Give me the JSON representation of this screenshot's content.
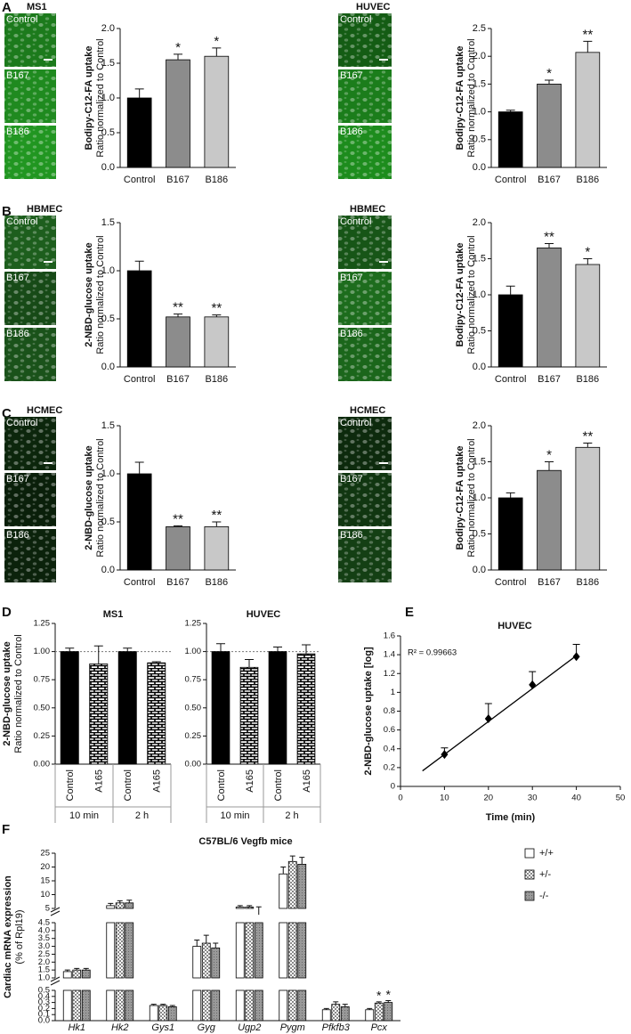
{
  "panel_letters": [
    "A",
    "B",
    "C",
    "D",
    "E",
    "F"
  ],
  "micrographs": [
    {
      "title": "MS1",
      "rows": [
        "Control",
        "B167",
        "B186"
      ],
      "colors": [
        "#1c7a1c",
        "#1f8a1f",
        "#219621"
      ]
    },
    {
      "title": "HUVEC",
      "rows": [
        "Control",
        "B167",
        "B186"
      ],
      "colors": [
        "#145c14",
        "#1b7d1b",
        "#1d8c1d"
      ]
    },
    {
      "title": "HBMEC",
      "rows": [
        "Control",
        "B167",
        "B186"
      ],
      "colors": [
        "#1d5e1d",
        "#174a17",
        "#1a521a"
      ]
    },
    {
      "title": "HBMEC",
      "rows": [
        "Control",
        "B167",
        "B186"
      ],
      "colors": [
        "#175517",
        "#1d6c1d",
        "#1b661b"
      ]
    },
    {
      "title": "HCMEC",
      "rows": [
        "Control",
        "B167",
        "B186"
      ],
      "colors": [
        "#0c260c",
        "#0a1f0a",
        "#0b220b"
      ]
    },
    {
      "title": "HCMEC",
      "rows": [
        "Control",
        "B167",
        "B186"
      ],
      "colors": [
        "#0d2a0d",
        "#113611",
        "#143f14"
      ]
    }
  ],
  "chart_data": [
    {
      "type": "bar",
      "ylabel": [
        "Bodipy-C12-FA  uptake",
        "Ratio normalized to Control"
      ],
      "categories": [
        "Control",
        "B167",
        "B186"
      ],
      "values": [
        1.0,
        1.55,
        1.6
      ],
      "errors": [
        0.13,
        0.08,
        0.12
      ],
      "significance": [
        null,
        "*",
        "*"
      ],
      "colors": [
        "#000000",
        "#8c8c8c",
        "#c8c8c8"
      ],
      "ylim": [
        0,
        2
      ],
      "yticks": [
        {
          "value": 0,
          "label": "0.0"
        },
        0.5,
        {
          "value": 1,
          "label": "1.0"
        },
        1.5,
        {
          "value": 2,
          "label": "2.0"
        }
      ]
    },
    {
      "type": "bar",
      "ylabel": [
        "Bodipy-C12-FA  uptake",
        "Ratio normalized to Control"
      ],
      "categories": [
        "Control",
        "B167",
        "B186"
      ],
      "values": [
        1.0,
        1.5,
        2.07
      ],
      "errors": [
        0.03,
        0.07,
        0.2
      ],
      "significance": [
        null,
        "*",
        "**"
      ],
      "colors": [
        "#000000",
        "#8c8c8c",
        "#c8c8c8"
      ],
      "ylim": [
        0,
        2.5
      ],
      "yticks": [
        {
          "value": 0,
          "label": "0.0"
        },
        0.5,
        {
          "value": 1,
          "label": "1.0"
        },
        1.5,
        {
          "value": 2,
          "label": "2.0"
        },
        2.5
      ]
    },
    {
      "type": "bar",
      "ylabel": [
        "2-NBD-glucose uptake",
        "Ratio normalized to Control"
      ],
      "categories": [
        "Control",
        "B167",
        "B186"
      ],
      "values": [
        1.0,
        0.52,
        0.52
      ],
      "errors": [
        0.1,
        0.03,
        0.02
      ],
      "significance": [
        null,
        "**",
        "**"
      ],
      "colors": [
        "#000000",
        "#8c8c8c",
        "#c8c8c8"
      ],
      "ylim": [
        0,
        1.5
      ],
      "yticks": [
        {
          "value": 0,
          "label": "0.0"
        },
        0.5,
        {
          "value": 1,
          "label": "1.0"
        },
        1.5
      ]
    },
    {
      "type": "bar",
      "ylabel": [
        "Bodipy-C12-FA  uptake",
        "Ratio normalized to Control"
      ],
      "categories": [
        "Control",
        "B167",
        "B186"
      ],
      "values": [
        1.0,
        1.65,
        1.42
      ],
      "errors": [
        0.12,
        0.06,
        0.08
      ],
      "significance": [
        null,
        "**",
        "*"
      ],
      "colors": [
        "#000000",
        "#8c8c8c",
        "#c8c8c8"
      ],
      "ylim": [
        0,
        2
      ],
      "yticks": [
        {
          "value": 0,
          "label": "0.0"
        },
        0.5,
        {
          "value": 1,
          "label": "1.0"
        },
        1.5,
        {
          "value": 2,
          "label": "2.0"
        }
      ]
    },
    {
      "type": "bar",
      "ylabel": [
        "2-NBD-glucose uptake",
        "Ratio normalized to Control"
      ],
      "categories": [
        "Control",
        "B167",
        "B186"
      ],
      "values": [
        1.0,
        0.45,
        0.45
      ],
      "errors": [
        0.12,
        0.01,
        0.05
      ],
      "significance": [
        null,
        "**",
        "**"
      ],
      "colors": [
        "#000000",
        "#8c8c8c",
        "#c8c8c8"
      ],
      "ylim": [
        0,
        1.5
      ],
      "yticks": [
        {
          "value": 0,
          "label": "0.0"
        },
        0.5,
        {
          "value": 1,
          "label": "1.0"
        },
        1.5
      ]
    },
    {
      "type": "bar",
      "ylabel": [
        "Bodipy-C12-FA  uptake",
        "Ratio normalized to Control"
      ],
      "categories": [
        "Control",
        "B167",
        "B186"
      ],
      "values": [
        1.0,
        1.38,
        1.7
      ],
      "errors": [
        0.07,
        0.12,
        0.06
      ],
      "significance": [
        null,
        "*",
        "**"
      ],
      "colors": [
        "#000000",
        "#8c8c8c",
        "#c8c8c8"
      ],
      "ylim": [
        0,
        2
      ],
      "yticks": [
        {
          "value": 0,
          "label": "0.0"
        },
        0.5,
        {
          "value": 1,
          "label": "1.0"
        },
        1.5,
        {
          "value": 2,
          "label": "2.0"
        }
      ]
    },
    {
      "type": "bar",
      "title": "MS1",
      "ylabel": [
        "2-NBD-glucose uptake",
        "Ratio normalized to Control"
      ],
      "categories": [
        "Control",
        "A165",
        "Control",
        "A165"
      ],
      "groups": [
        "10 min",
        "2 h"
      ],
      "values": [
        1.0,
        0.89,
        1.0,
        0.9
      ],
      "errors": [
        0.03,
        0.16,
        0.03,
        0.01
      ],
      "colors": [
        "#000000",
        "#000000",
        "#000000",
        "#000000"
      ],
      "patterns": [
        null,
        "brick",
        null,
        "brick"
      ],
      "refline": 1.0,
      "ylim": [
        0,
        1.25
      ],
      "yticks": [
        {
          "value": 0,
          "label": "0.00"
        },
        0.25,
        {
          "value": 0.5,
          "label": "0.50"
        },
        0.75,
        {
          "value": 1,
          "label": "1.00"
        },
        1.25
      ]
    },
    {
      "type": "bar",
      "title": "HUVEC",
      "categories": [
        "Control",
        "A165",
        "Control",
        "A165"
      ],
      "groups": [
        "10 min",
        "2 h"
      ],
      "values": [
        1.0,
        0.86,
        1.0,
        0.98
      ],
      "errors": [
        0.07,
        0.07,
        0.04,
        0.08
      ],
      "colors": [
        "#000000",
        "#000000",
        "#000000",
        "#000000"
      ],
      "patterns": [
        null,
        "brick",
        null,
        "brick"
      ],
      "refline": 1.0,
      "ylim": [
        0,
        1.25
      ],
      "yticks": [
        {
          "value": 0,
          "label": "0.00"
        },
        0.25,
        {
          "value": 0.5,
          "label": "0.50"
        },
        0.75,
        {
          "value": 1,
          "label": "1.00"
        },
        1.25
      ]
    },
    {
      "type": "scatter",
      "title": "HUVEC",
      "xlabel": "Time (min)",
      "ylabel": "2-NBD-glucose uptake [log]",
      "annotation": "R² = 0.99663",
      "x": [
        10,
        20,
        30,
        40
      ],
      "y": [
        0.34,
        0.72,
        1.08,
        1.38
      ],
      "errors": [
        0.07,
        0.16,
        0.14,
        0.13
      ],
      "trendline": {
        "x": [
          5,
          40
        ],
        "y": [
          0.165,
          1.39
        ]
      },
      "color": "#000000",
      "xlim": [
        0,
        50
      ],
      "xticks": [
        0,
        10,
        20,
        30,
        40,
        50
      ],
      "ylim": [
        0,
        1.6
      ],
      "yticks": [
        0,
        0.2,
        0.4,
        0.6,
        0.8,
        1,
        1.2,
        1.4,
        1.6
      ]
    },
    {
      "type": "broken-bar",
      "title": "C57BL/6 Vegfb mice",
      "ylabel": [
        "Cardiac mRNA expression",
        "(% of Rpl19)"
      ],
      "categories": [
        "Hk1",
        "Hk2",
        "Gys1",
        "Gyg",
        "Ugp2",
        "Pygm",
        "Pfkfb3",
        "Pcx"
      ],
      "series": [
        {
          "name": "+/+",
          "color": "#ffffff",
          "values": [
            1.4,
            6.0,
            0.25,
            3.0,
            5.5,
            17.5,
            0.18,
            0.18
          ],
          "errors": [
            0.1,
            0.8,
            0.02,
            0.4,
            0.5,
            2.5,
            0.02,
            0.02
          ],
          "significance": [
            null,
            null,
            null,
            null,
            null,
            null,
            null,
            null
          ]
        },
        {
          "name": "+/-",
          "color": "checker",
          "values": [
            1.5,
            7.0,
            0.25,
            3.2,
            5.5,
            22,
            0.27,
            0.29
          ],
          "errors": [
            0.1,
            0.8,
            0.02,
            0.5,
            0.5,
            2.0,
            0.04,
            0.02
          ],
          "significance": [
            null,
            null,
            null,
            null,
            null,
            null,
            null,
            "*"
          ]
        },
        {
          "name": "-/-",
          "color": "dots",
          "values": [
            1.5,
            7.0,
            0.23,
            2.9,
            5.0,
            21,
            0.23,
            0.3
          ],
          "errors": [
            0.1,
            1.0,
            0.02,
            0.3,
            0.5,
            2.5,
            0.04,
            0.03
          ],
          "significance": [
            null,
            null,
            null,
            null,
            null,
            null,
            null,
            "*"
          ]
        }
      ],
      "segments": [
        {
          "ylim": [
            0,
            0.5
          ],
          "yticks": [
            {
              "value": 0,
              "label": "0.0"
            },
            0.1,
            0.2,
            0.3,
            0.4,
            0.5
          ]
        },
        {
          "ylim": [
            1,
            4.5
          ],
          "yticks": [
            {
              "value": 1,
              "label": "1.0"
            },
            1.5,
            {
              "value": 2,
              "label": "2.0"
            },
            2.5,
            {
              "value": 3,
              "label": "3.0"
            },
            3.5,
            {
              "value": 4,
              "label": "4.0"
            },
            4.5
          ]
        },
        {
          "ylim": [
            5,
            25
          ],
          "yticks": [
            5,
            10,
            15,
            20,
            25
          ]
        }
      ]
    }
  ]
}
